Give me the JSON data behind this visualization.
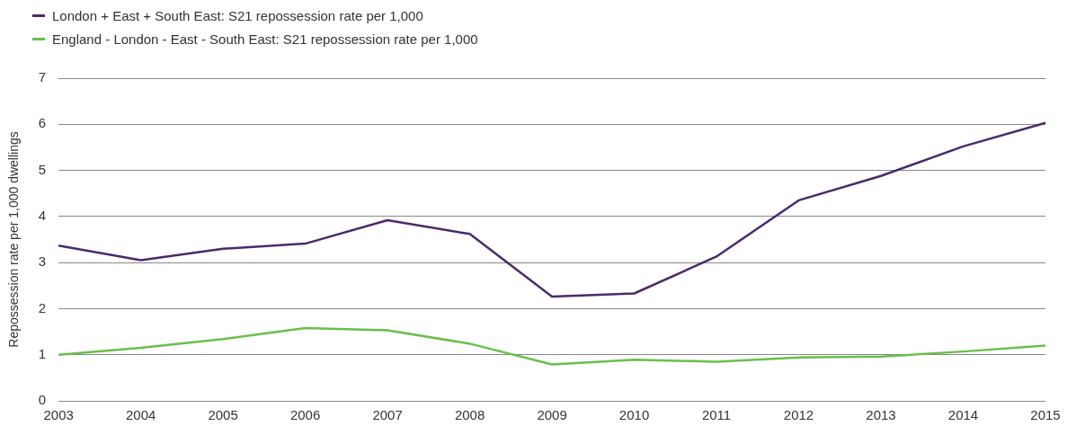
{
  "chart_data": {
    "type": "line",
    "ylabel": "Repossession rate per 1,000 dwellings",
    "categories": [
      "2003",
      "2004",
      "2005",
      "2006",
      "2007",
      "2008",
      "2009",
      "2010",
      "2011",
      "2012",
      "2013",
      "2014",
      "2015"
    ],
    "series": [
      {
        "name": "London + East + South East: S21 repossession rate per 1,000",
        "color": "#4b2a6b",
        "values": [
          3.37,
          3.05,
          3.3,
          3.41,
          3.92,
          3.62,
          2.26,
          2.33,
          3.13,
          4.35,
          4.88,
          5.52,
          6.03
        ]
      },
      {
        "name": "England - London - East - South East: S21 repossession rate per 1,000",
        "color": "#6abf4b",
        "values": [
          1.0,
          1.15,
          1.34,
          1.58,
          1.53,
          1.24,
          0.79,
          0.89,
          0.85,
          0.94,
          0.96,
          1.07,
          1.2
        ]
      }
    ],
    "ylim": [
      0,
      7
    ],
    "yticks": [
      0,
      1,
      2,
      3,
      4,
      5,
      6,
      7
    ],
    "grid": "y",
    "legend": "top left",
    "marker": "none",
    "line_style": "solid"
  }
}
